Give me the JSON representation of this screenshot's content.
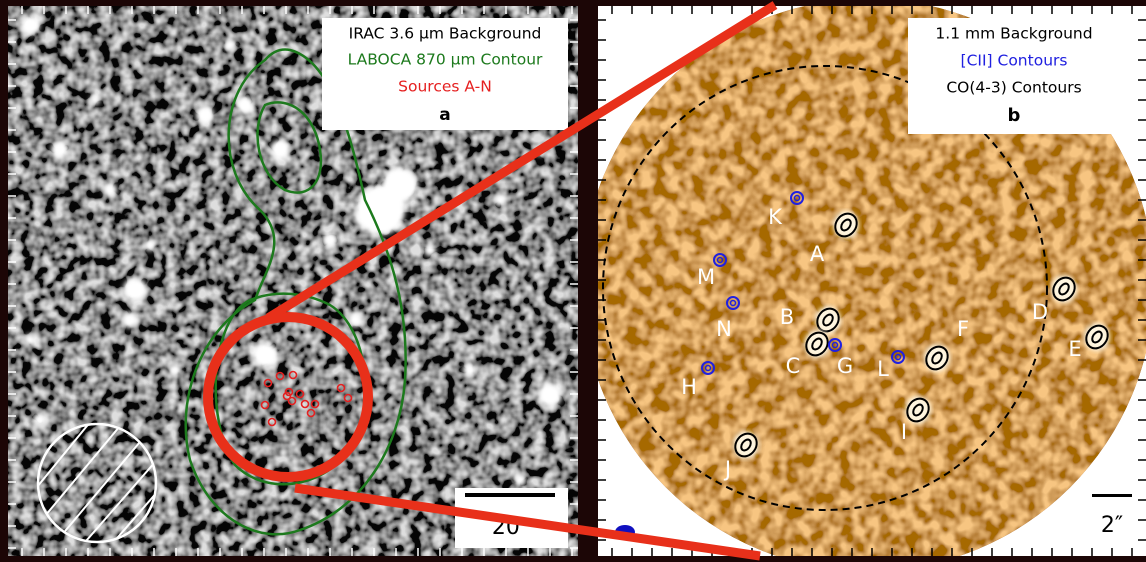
{
  "panel_a": {
    "legend": [
      "IRAC 3.6 μm Background",
      "LABOCA 870 μm Contour",
      "Sources A-N"
    ],
    "label": "a",
    "scale": "20″"
  },
  "panel_b": {
    "legend": [
      "1.1 mm Background",
      "[CII] Contours",
      "CO(4-3) Contours"
    ],
    "label": "b",
    "scale": "2″",
    "sources": [
      "K",
      "A",
      "M",
      "N",
      "B",
      "C",
      "G",
      "L",
      "F",
      "D",
      "E",
      "H",
      "I",
      "J"
    ]
  }
}
